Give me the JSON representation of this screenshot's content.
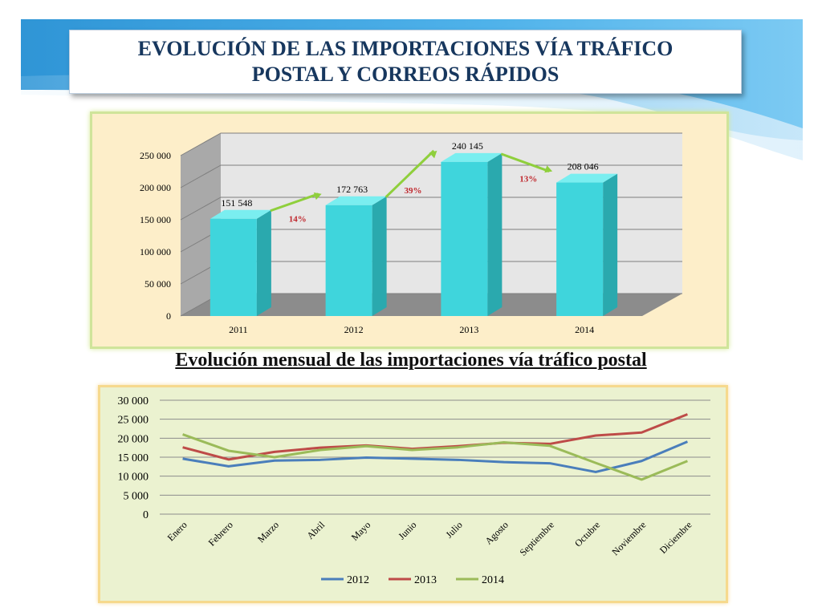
{
  "slide": {
    "title": "EVOLUCIÓN DE LAS IMPORTACIONES VÍA TRÁFICO POSTAL Y CORREOS RÁPIDOS",
    "subtitle": "Evolución mensual de las importaciones vía tráfico postal"
  },
  "colors": {
    "bar_front": "#3fd5dc",
    "bar_side": "#2aa9ae",
    "bar_top": "#7aeef0",
    "arrow": "#8fcf3c",
    "pct": "#c0282e",
    "series_2012": "#4a7ebb",
    "series_2013": "#be4b48",
    "series_2014": "#9bbb59"
  },
  "chart_data": [
    {
      "type": "bar",
      "title": "",
      "categories": [
        "2011",
        "2012",
        "2013",
        "2014"
      ],
      "values": [
        151548,
        172763,
        240145,
        208046
      ],
      "value_labels": [
        "151 548",
        "172 763",
        "240 145",
        "208 046"
      ],
      "yticks": [
        "0",
        "50 000",
        "100 000",
        "150 000",
        "200 000",
        "250 000"
      ],
      "ylim": [
        0,
        250000
      ],
      "grid": true,
      "annotations": [
        {
          "text": "14%",
          "between": [
            "2011",
            "2012"
          ]
        },
        {
          "text": "39%",
          "between": [
            "2012",
            "2013"
          ]
        },
        {
          "text": "13%",
          "between": [
            "2013",
            "2014"
          ]
        }
      ]
    },
    {
      "type": "line",
      "title": "",
      "categories": [
        "Enero",
        "Febrero",
        "Marzo",
        "Abril",
        "Mayo",
        "Junio",
        "Julio",
        "Agosto",
        "Septiembre",
        "Octubre",
        "Noviembre",
        "Diciembre"
      ],
      "yticks": [
        "0",
        "5 000",
        "10 000",
        "15 000",
        "20 000",
        "25 000",
        "30 000"
      ],
      "ylim": [
        0,
        30000
      ],
      "grid": true,
      "legend": "bottom",
      "series": [
        {
          "name": "2012",
          "values": [
            14600,
            12600,
            14100,
            14300,
            14900,
            14600,
            14300,
            13700,
            13400,
            11100,
            14000,
            19100
          ]
        },
        {
          "name": "2013",
          "values": [
            17600,
            14400,
            16400,
            17500,
            18100,
            17200,
            17900,
            18800,
            18500,
            20700,
            21500,
            26300
          ]
        },
        {
          "name": "2014",
          "values": [
            21000,
            16700,
            15000,
            16900,
            17900,
            16900,
            17600,
            18900,
            18000,
            13500,
            9100,
            14000
          ]
        }
      ]
    }
  ]
}
